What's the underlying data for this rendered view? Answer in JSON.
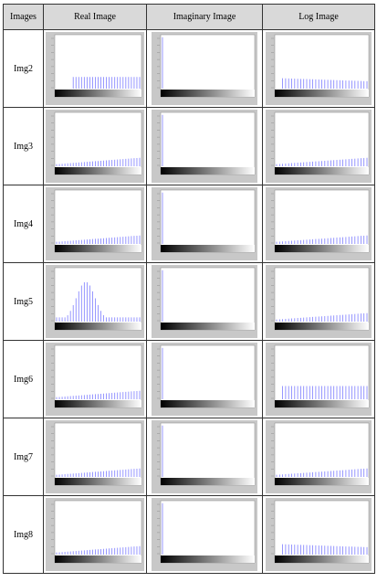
{
  "table": {
    "header": [
      "Images",
      "Real Image",
      "Imaginary Image",
      "Log Image"
    ],
    "rows": [
      "Img2",
      "Img3",
      "Img4",
      "Img5",
      "Img6",
      "Img7",
      "Img8"
    ]
  }
}
